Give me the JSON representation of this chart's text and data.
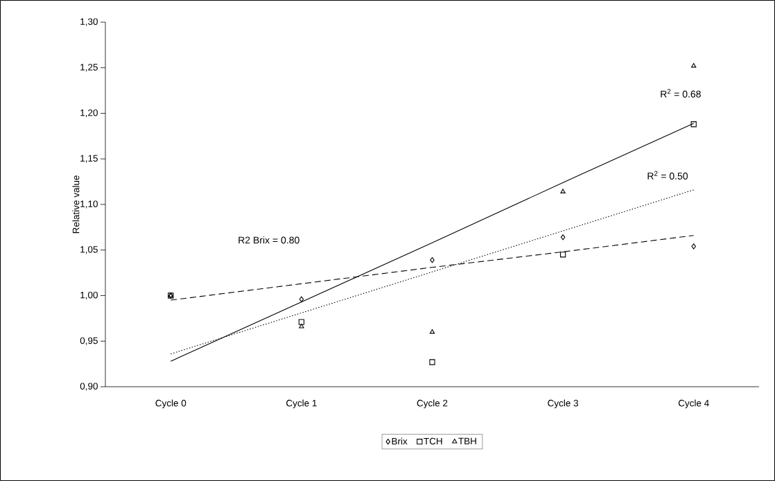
{
  "chart_data": {
    "type": "scatter",
    "ylabel": "Relative value",
    "categories": [
      "Cycle 0",
      "Cycle 1",
      "Cycle 2",
      "Cycle 3",
      "Cycle 4"
    ],
    "series": [
      {
        "name": "Brix",
        "color": "#000000",
        "marker": "diamond",
        "values": [
          1.0,
          0.996,
          1.039,
          1.064,
          1.054
        ]
      },
      {
        "name": "TCH",
        "color": "#000000",
        "marker": "square",
        "values": [
          1.0,
          0.971,
          0.927,
          1.045,
          1.188
        ]
      },
      {
        "name": "TBH",
        "color": "#000000",
        "marker": "triangle",
        "values": [
          1.0,
          0.966,
          0.96,
          1.114,
          1.252
        ]
      },
      {
        "type": "line",
        "color": "#000000",
        "marker": "none",
        "line_style": "dashed",
        "values": [
          0.995,
          1.013,
          1.031,
          1.048,
          1.066
        ]
      },
      {
        "type": "line",
        "color": "#000000",
        "marker": "none",
        "line_style": "dotted",
        "values": [
          0.936,
          0.981,
          1.026,
          1.071,
          1.116
        ]
      },
      {
        "type": "line",
        "color": "#000000",
        "marker": "none",
        "line_style": "solid",
        "values": [
          0.928,
          0.993,
          1.058,
          1.124,
          1.189
        ]
      }
    ],
    "ylim": [
      0.9,
      1.3
    ],
    "yticks": [
      {
        "value": 0.9,
        "label": "0,90"
      },
      {
        "value": 0.95,
        "label": "0,95"
      },
      {
        "value": 1.0,
        "label": "1,00"
      },
      {
        "value": 1.05,
        "label": "1,05"
      },
      {
        "value": 1.1,
        "label": "1,10"
      },
      {
        "value": 1.15,
        "label": "1,15"
      },
      {
        "value": 1.2,
        "label": "1,20"
      },
      {
        "value": 1.25,
        "label": "1,25"
      },
      {
        "value": 1.3,
        "label": "1,30"
      }
    ],
    "annotations": [
      "R2 Brix = 0.80",
      "R$^{2}$ = 0.68",
      "R$^{2}$ = 0.50"
    ],
    "legend": "bottom",
    "grid": false
  }
}
